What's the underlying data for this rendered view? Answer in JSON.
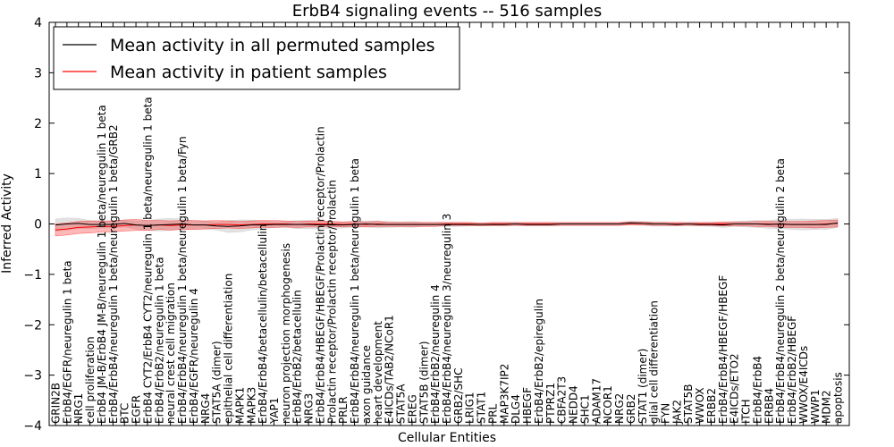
{
  "chart_data": {
    "type": "line",
    "title": "ErbB4 signaling events -- 516 samples",
    "xlabel": "Cellular Entities",
    "ylabel": "Inferred Activity",
    "ylim": [
      -4,
      4
    ],
    "yticks": [
      -4,
      -3,
      -2,
      -1,
      0,
      1,
      2,
      3,
      4
    ],
    "ytick_labels": [
      "−4",
      "−3",
      "−2",
      "−1",
      "0",
      "1",
      "2",
      "3",
      "4"
    ],
    "grid": false,
    "legend_position": "top-left",
    "categories": [
      "GRIN2B",
      "ErbB4/EGFR/neuregulin 1 beta",
      "NRG1",
      "cell proliferation",
      "ErbB4 JM-B/ErbB4 JM-B/neuregulin 1 beta/neuregulin 1 beta",
      "ErbB4/ErbB4/neuregulin 1 beta/neuregulin 1 beta/GRB2",
      "BTC",
      "EGFR",
      "ErbB4 CYT2/ErbB4 CYT2/neuregulin 1 beta/neuregulin 1 beta",
      "ErbB4/ErbB2/neuregulin 1 beta",
      "neural crest cell migration",
      "ErbB4/ErbB4/neuregulin 1 beta/neuregulin 1 beta/Fyn",
      "ErbB4/EGFR/neuregulin 4",
      "NRG4",
      "STAT5A (dimer)",
      "epithelial cell differentiation",
      "MAPK1",
      "MAPK3",
      "ErbB4/ErbB4/betacellulin/betacellulin",
      "YAP1",
      "neuron projection morphogenesis",
      "ErbB4/ErbB2/betacellulin",
      "NRG3",
      "ErbB4/ErbB4/HBEGF/HBEGF/Prolactin receptor/Prolactin",
      "Prolactin receptor/Prolactin receptor/Prolactin",
      "PRLR",
      "ErbB4/ErbB4/neuregulin 1 beta/neuregulin 1 beta",
      "axon guidance",
      "heart development",
      "E4ICDs/TAB2/NCoR1",
      "STAT5A",
      "EREG",
      "STAT5B (dimer)",
      "ErbB4/ErbB2/neuregulin 4",
      "ErbB4/ErbB4/neuregulin 3/neuregulin 3",
      "GRB2/SHC",
      "LRIG1",
      "STAT1",
      "PRL",
      "MAP3K7IP2",
      "DLG4",
      "HBEGF",
      "ErbB4/ErbB2/epiregulin",
      "PTPRZ1",
      "CBFA2T3",
      "NEDD4",
      "SHC1",
      "ADAM17",
      "NCOR1",
      "NRG2",
      "GRB2",
      "STAT1 (dimer)",
      "glial cell differentiation",
      "FYN",
      "JAK2",
      "STAT5B",
      "WWOX",
      "ERBB2",
      "ErbB4/ErbB4/HBEGF/HBEGF",
      "E4ICDs/ETO2",
      "ITCH",
      "ErbB4/ErbB4",
      "ERBB4",
      "ErbB4/ErbB4/neuregulin 2 beta/neuregulin 2 beta",
      "ErbB4/ErbB2/HBEGF",
      "WWOX/E4ICDs",
      "WWP1",
      "MDM2",
      "apoptosis"
    ],
    "series": [
      {
        "name": "Mean activity in all permuted samples",
        "color": "#000000",
        "values": [
          -0.02,
          0.0,
          0.01,
          -0.01,
          -0.01,
          -0.01,
          0.01,
          -0.02,
          -0.03,
          -0.02,
          -0.01,
          0.0,
          -0.02,
          -0.02,
          -0.04,
          -0.05,
          -0.04,
          -0.02,
          -0.02,
          -0.01,
          -0.01,
          -0.01,
          -0.01,
          -0.02,
          -0.02,
          -0.02,
          -0.01,
          0.0,
          -0.01,
          -0.01,
          -0.01,
          -0.01,
          -0.01,
          -0.01,
          -0.01,
          -0.01,
          -0.01,
          -0.01,
          -0.01,
          -0.01,
          0.0,
          -0.01,
          -0.01,
          -0.01,
          0.0,
          0.0,
          0.0,
          0.0,
          0.0,
          0.0,
          0.02,
          0.01,
          0.0,
          0.0,
          -0.01,
          0.0,
          -0.01,
          -0.01,
          -0.02,
          0.0,
          0.0,
          0.0,
          -0.01,
          0.0,
          -0.01,
          -0.01,
          -0.01,
          -0.01,
          0.02
        ]
      },
      {
        "name": "Mean activity in patient samples",
        "color": "#ff0000",
        "values": [
          -0.12,
          -0.1,
          -0.07,
          -0.06,
          -0.05,
          -0.05,
          -0.03,
          -0.02,
          -0.03,
          -0.02,
          -0.03,
          -0.02,
          -0.02,
          -0.02,
          -0.01,
          -0.01,
          -0.02,
          -0.01,
          0.0,
          0.0,
          0.0,
          -0.01,
          0.0,
          0.0,
          0.0,
          -0.01,
          0.0,
          -0.01,
          0.0,
          -0.01,
          -0.01,
          -0.01,
          -0.01,
          -0.01,
          0.0,
          0.0,
          0.0,
          -0.01,
          0.0,
          0.0,
          0.0,
          0.0,
          0.0,
          0.0,
          0.0,
          0.0,
          0.0,
          0.0,
          0.0,
          0.0,
          0.01,
          0.01,
          0.0,
          0.0,
          0.0,
          0.0,
          0.0,
          0.0,
          0.0,
          0.0,
          0.0,
          0.0,
          0.0,
          -0.01,
          -0.01,
          -0.01,
          -0.01,
          0.0,
          0.01
        ]
      }
    ],
    "bands": [
      {
        "name": "permuted spread",
        "color": "#bfbfbf",
        "half_width": [
          0.12,
          0.12,
          0.1,
          0.08,
          0.07,
          0.07,
          0.07,
          0.08,
          0.1,
          0.12,
          0.12,
          0.1,
          0.08,
          0.08,
          0.08,
          0.12,
          0.12,
          0.1,
          0.08,
          0.06,
          0.06,
          0.08,
          0.08,
          0.08,
          0.07,
          0.06,
          0.06,
          0.06,
          0.07,
          0.06,
          0.05,
          0.06,
          0.04,
          0.04,
          0.04,
          0.04,
          0.03,
          0.03,
          0.03,
          0.03,
          0.03,
          0.03,
          0.03,
          0.03,
          0.03,
          0.03,
          0.03,
          0.03,
          0.03,
          0.03,
          0.04,
          0.04,
          0.04,
          0.04,
          0.03,
          0.03,
          0.03,
          0.04,
          0.05,
          0.05,
          0.06,
          0.07,
          0.08,
          0.09,
          0.1,
          0.11,
          0.1,
          0.1,
          0.09
        ]
      },
      {
        "name": "patient spread",
        "color": "#ff0000",
        "half_width": [
          0.12,
          0.12,
          0.12,
          0.12,
          0.11,
          0.11,
          0.11,
          0.11,
          0.1,
          0.09,
          0.09,
          0.09,
          0.09,
          0.08,
          0.08,
          0.07,
          0.07,
          0.07,
          0.07,
          0.07,
          0.06,
          0.06,
          0.06,
          0.06,
          0.05,
          0.05,
          0.05,
          0.05,
          0.05,
          0.04,
          0.04,
          0.04,
          0.04,
          0.04,
          0.03,
          0.03,
          0.03,
          0.03,
          0.03,
          0.03,
          0.03,
          0.03,
          0.03,
          0.03,
          0.03,
          0.03,
          0.03,
          0.03,
          0.03,
          0.03,
          0.03,
          0.03,
          0.03,
          0.03,
          0.03,
          0.03,
          0.03,
          0.03,
          0.04,
          0.04,
          0.04,
          0.05,
          0.05,
          0.06,
          0.06,
          0.06,
          0.07,
          0.07,
          0.07
        ]
      }
    ]
  }
}
